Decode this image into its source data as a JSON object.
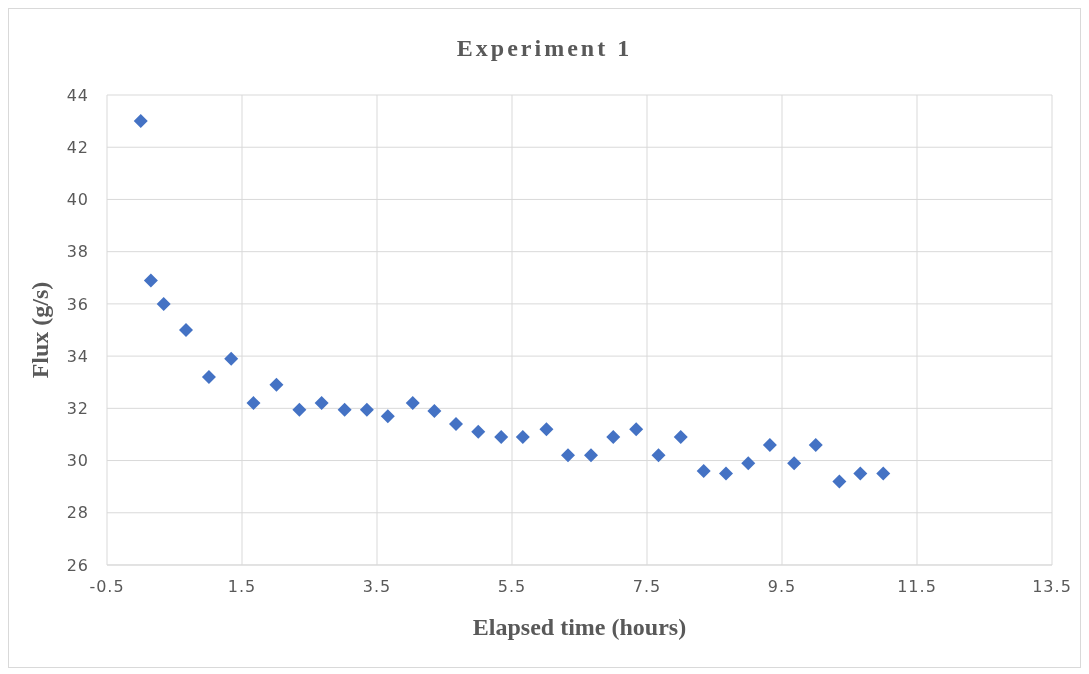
{
  "chart_data": {
    "type": "scatter",
    "title": "Experiment 1",
    "xlabel": "Elapsed time (hours)",
    "ylabel": "Flux (g/s)",
    "x": [
      0,
      0.15,
      0.34,
      0.67,
      1.01,
      1.34,
      1.67,
      2.01,
      2.35,
      2.68,
      3.02,
      3.35,
      3.66,
      4.03,
      4.35,
      4.67,
      5.0,
      5.34,
      5.66,
      6.01,
      6.33,
      6.67,
      7.0,
      7.34,
      7.67,
      8.0,
      8.34,
      8.67,
      9.0,
      9.32,
      9.68,
      10.0,
      10.35,
      10.66,
      11.0
    ],
    "values": [
      43,
      36.9,
      36.0,
      35.0,
      33.2,
      33.9,
      32.2,
      32.9,
      31.95,
      32.2,
      31.95,
      31.95,
      31.7,
      32.2,
      31.9,
      31.4,
      31.1,
      30.9,
      30.9,
      31.2,
      30.2,
      30.2,
      30.9,
      31.2,
      30.2,
      30.9,
      29.6,
      29.5,
      29.9,
      30.6,
      29.9,
      30.6,
      29.2,
      29.5,
      29.5
    ],
    "color": "#4472c4",
    "marker": "diamond",
    "xlim": [
      -0.5,
      13.5
    ],
    "xticks": [
      -0.5,
      1.5,
      3.5,
      5.5,
      7.5,
      9.5,
      11.5,
      13.5
    ],
    "ylim": [
      26,
      44
    ],
    "yticks": [
      26,
      28,
      30,
      32,
      34,
      36,
      38,
      40,
      42,
      44
    ],
    "grid": true
  }
}
